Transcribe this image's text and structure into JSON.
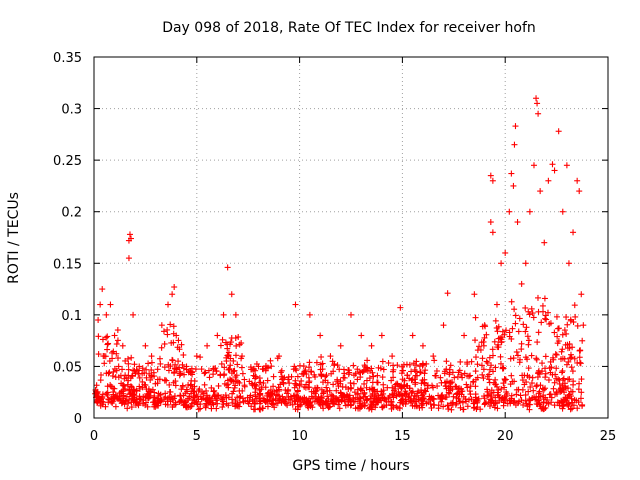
{
  "chart_data": {
    "type": "scatter",
    "title": "Day 098 of 2018, Rate Of TEC Index for receiver hofn",
    "xlabel": "GPS time / hours",
    "ylabel": "ROTI / TECUs",
    "xlim": [
      0,
      25
    ],
    "ylim": [
      0,
      0.35
    ],
    "xticks": [
      0,
      5,
      10,
      15,
      20,
      25
    ],
    "yticks": [
      0,
      0.05,
      0.1,
      0.15,
      0.2,
      0.25,
      0.3,
      0.35
    ],
    "xtick_labels": [
      "0",
      "5",
      "10",
      "15",
      "20",
      "25"
    ],
    "ytick_labels": [
      "0",
      "0.05",
      "0.1",
      "0.15",
      "0.2",
      "0.25",
      "0.3",
      "0.35"
    ],
    "grid": true,
    "marker": "+",
    "series_color": "#ff0000",
    "series": [
      {
        "name": "ROTI",
        "points": [
          [
            0.1,
            0.02
          ],
          [
            0.2,
            0.095
          ],
          [
            0.3,
            0.11
          ],
          [
            0.4,
            0.125
          ],
          [
            0.5,
            0.06
          ],
          [
            0.6,
            0.1
          ],
          [
            0.8,
            0.11
          ],
          [
            1.0,
            0.08
          ],
          [
            1.2,
            0.05
          ],
          [
            1.4,
            0.07
          ],
          [
            1.7,
            0.172
          ],
          [
            1.75,
            0.178
          ],
          [
            1.8,
            0.174
          ],
          [
            1.7,
            0.155
          ],
          [
            1.9,
            0.1
          ],
          [
            2.2,
            0.05
          ],
          [
            2.5,
            0.07
          ],
          [
            2.8,
            0.06
          ],
          [
            3.3,
            0.09
          ],
          [
            3.6,
            0.11
          ],
          [
            3.8,
            0.12
          ],
          [
            3.9,
            0.127
          ],
          [
            4.0,
            0.08
          ],
          [
            4.5,
            0.05
          ],
          [
            5.0,
            0.06
          ],
          [
            5.5,
            0.07
          ],
          [
            6.0,
            0.08
          ],
          [
            6.3,
            0.1
          ],
          [
            6.5,
            0.146
          ],
          [
            6.7,
            0.12
          ],
          [
            6.9,
            0.1
          ],
          [
            7.2,
            0.06
          ],
          [
            8.0,
            0.05
          ],
          [
            9.0,
            0.06
          ],
          [
            9.8,
            0.11
          ],
          [
            10.5,
            0.1
          ],
          [
            11.0,
            0.08
          ],
          [
            11.5,
            0.06
          ],
          [
            12.0,
            0.07
          ],
          [
            12.5,
            0.1
          ],
          [
            13.0,
            0.08
          ],
          [
            13.5,
            0.07
          ],
          [
            14.0,
            0.08
          ],
          [
            14.5,
            0.06
          ],
          [
            14.9,
            0.107
          ],
          [
            15.5,
            0.08
          ],
          [
            16.0,
            0.07
          ],
          [
            16.5,
            0.06
          ],
          [
            17.0,
            0.09
          ],
          [
            17.2,
            0.121
          ],
          [
            18.0,
            0.08
          ],
          [
            18.5,
            0.12
          ],
          [
            19.0,
            0.09
          ],
          [
            19.3,
            0.235
          ],
          [
            19.4,
            0.23
          ],
          [
            19.3,
            0.19
          ],
          [
            19.4,
            0.18
          ],
          [
            19.6,
            0.11
          ],
          [
            19.8,
            0.15
          ],
          [
            20.0,
            0.16
          ],
          [
            20.2,
            0.2
          ],
          [
            20.3,
            0.237
          ],
          [
            20.4,
            0.225
          ],
          [
            20.5,
            0.283
          ],
          [
            20.45,
            0.265
          ],
          [
            20.6,
            0.19
          ],
          [
            20.8,
            0.13
          ],
          [
            21.0,
            0.15
          ],
          [
            21.2,
            0.2
          ],
          [
            21.4,
            0.245
          ],
          [
            21.5,
            0.31
          ],
          [
            21.55,
            0.305
          ],
          [
            21.6,
            0.295
          ],
          [
            21.7,
            0.22
          ],
          [
            21.9,
            0.17
          ],
          [
            22.1,
            0.23
          ],
          [
            22.3,
            0.246
          ],
          [
            22.4,
            0.24
          ],
          [
            22.6,
            0.278
          ],
          [
            22.8,
            0.2
          ],
          [
            23.0,
            0.245
          ],
          [
            23.1,
            0.15
          ],
          [
            23.3,
            0.18
          ],
          [
            23.5,
            0.23
          ],
          [
            23.6,
            0.22
          ],
          [
            23.7,
            0.12
          ],
          [
            23.8,
            0.09
          ]
        ]
      }
    ]
  }
}
